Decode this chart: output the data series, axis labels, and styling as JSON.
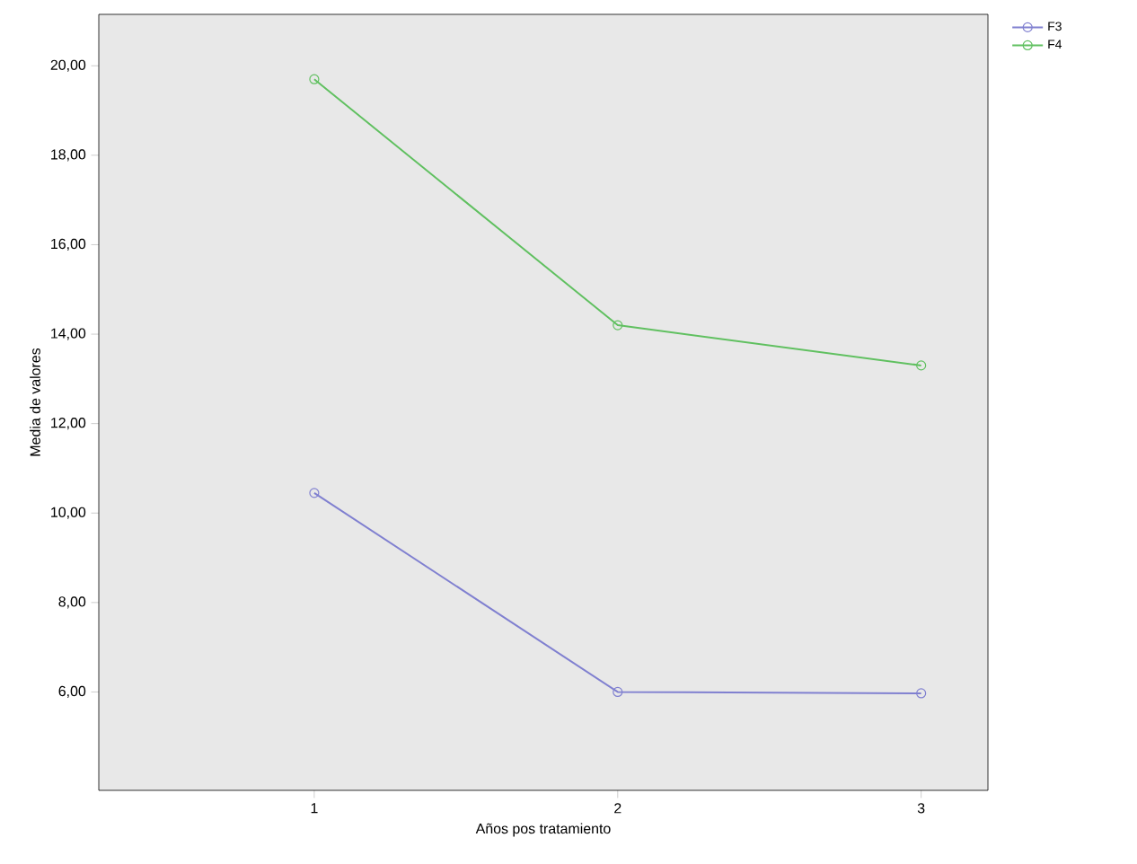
{
  "chart_data": {
    "type": "line",
    "xlabel": "Años pos tratamiento",
    "ylabel": "Media de valores",
    "x": [
      1,
      2,
      3
    ],
    "series": [
      {
        "name": "F3",
        "color": "#8080d0",
        "values": [
          10.45,
          6.0,
          5.97
        ]
      },
      {
        "name": "F4",
        "color": "#60c060",
        "values": [
          19.7,
          14.2,
          13.3
        ]
      }
    ],
    "xlim": [
      0.29,
      3.22
    ],
    "xticks": [
      1,
      2,
      3
    ],
    "ylim": [
      3.8,
      21.15
    ],
    "yticks": [
      {
        "value": 6,
        "label": "6,00"
      },
      {
        "value": 8,
        "label": "8,00"
      },
      {
        "value": 10,
        "label": "10,00"
      },
      {
        "value": 12,
        "label": "12,00"
      },
      {
        "value": 14,
        "label": "14,00"
      },
      {
        "value": 16,
        "label": "16,00"
      },
      {
        "value": 18,
        "label": "18,00"
      },
      {
        "value": 20,
        "label": "20,00"
      }
    ],
    "legend": "right",
    "marker": "circle",
    "line_style": "solid",
    "grid": false
  }
}
